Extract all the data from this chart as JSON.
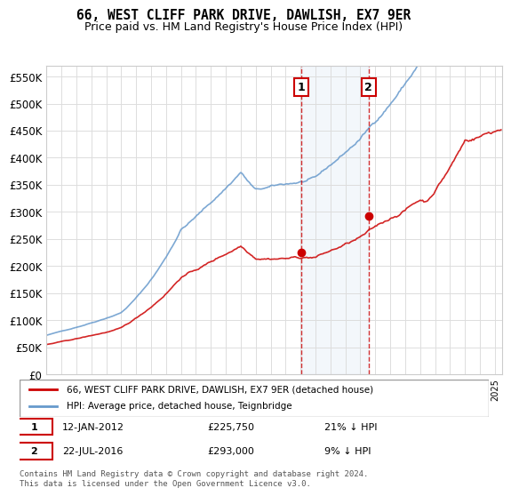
{
  "title": "66, WEST CLIFF PARK DRIVE, DAWLISH, EX7 9ER",
  "subtitle": "Price paid vs. HM Land Registry's House Price Index (HPI)",
  "ylabel_ticks": [
    "£0",
    "£50K",
    "£100K",
    "£150K",
    "£200K",
    "£250K",
    "£300K",
    "£350K",
    "£400K",
    "£450K",
    "£500K",
    "£550K"
  ],
  "ytick_values": [
    0,
    50000,
    100000,
    150000,
    200000,
    250000,
    300000,
    350000,
    400000,
    450000,
    500000,
    550000
  ],
  "ylim": [
    0,
    570000
  ],
  "xlim_start": 1995.0,
  "xlim_end": 2025.5,
  "legend_line1": "66, WEST CLIFF PARK DRIVE, DAWLISH, EX7 9ER (detached house)",
  "legend_line2": "HPI: Average price, detached house, Teignbridge",
  "line1_color": "#cc0000",
  "line2_color": "#6699cc",
  "marker1_color": "#cc0000",
  "vline_color": "#cc0000",
  "sale1_date": 2012.04,
  "sale1_price": 225750,
  "sale1_label": "1",
  "sale2_date": 2016.56,
  "sale2_price": 293000,
  "sale2_label": "2",
  "annotation1": "1   12-JAN-2012   £225,750   21% ↓ HPI",
  "annotation2": "2   22-JUL-2016   £293,000   9% ↓ HPI",
  "footer": "Contains HM Land Registry data © Crown copyright and database right 2024.\nThis data is licensed under the Open Government Licence v3.0.",
  "background_color": "#ffffff",
  "grid_color": "#dddddd"
}
